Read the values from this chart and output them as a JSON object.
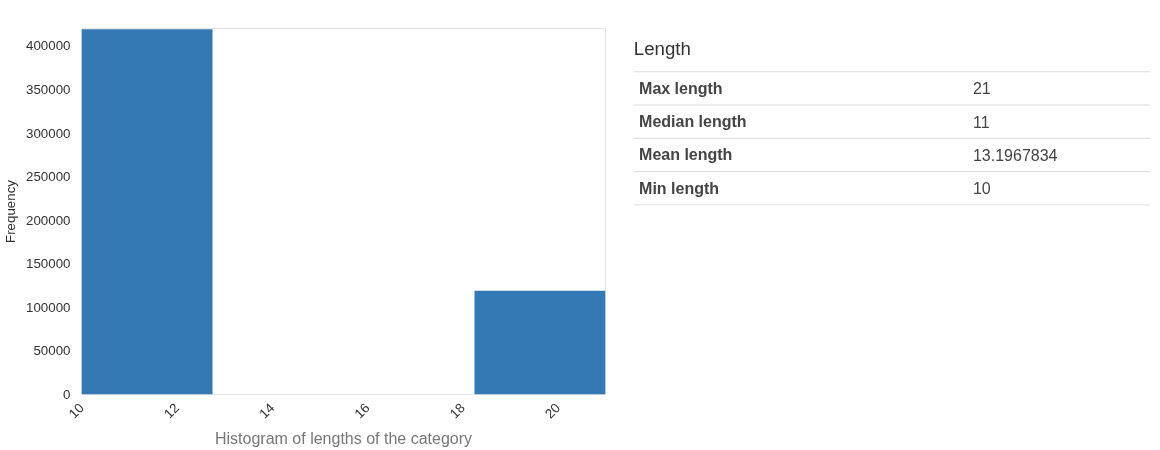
{
  "chart_data": [
    {
      "type": "histogram",
      "xlabel": "Histogram of lengths of the category",
      "ylabel": "Frequency",
      "bins": [
        10,
        12.75,
        15.5,
        18.25,
        21
      ],
      "values": [
        419000,
        0,
        0,
        119000
      ],
      "color": "#3478b4",
      "xlim": [
        10,
        21
      ],
      "xticks": [
        10,
        12,
        14,
        16,
        18,
        20
      ],
      "ylim": [
        0,
        420000
      ],
      "yticks": [
        0,
        50000,
        100000,
        150000,
        200000,
        250000,
        300000,
        350000,
        400000
      ],
      "grid": false
    },
    {
      "type": "other",
      "title": "Length",
      "categories": [
        "Max length",
        "Median length",
        "Mean length",
        "Min length"
      ],
      "values": [
        21,
        11,
        13.1967834,
        10
      ],
      "data_labels": true
    }
  ]
}
